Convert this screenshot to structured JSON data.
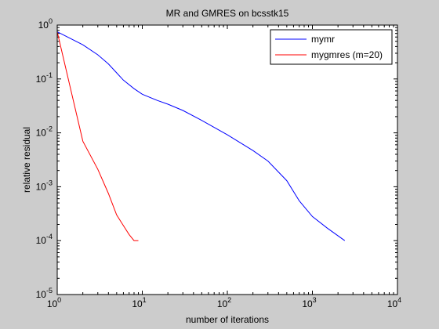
{
  "chart_data": {
    "type": "line",
    "title": "MR and GMRES on bcsstk15",
    "xlabel": "number of iterations",
    "ylabel": "relative residual",
    "xscale": "log",
    "yscale": "log",
    "xlim": [
      1,
      10000
    ],
    "ylim": [
      1e-05,
      1
    ],
    "grid": false,
    "legend_position": "top-right",
    "x_ticks": [
      {
        "value": 1,
        "base": "10",
        "exp": "0"
      },
      {
        "value": 10,
        "base": "10",
        "exp": "1"
      },
      {
        "value": 100,
        "base": "10",
        "exp": "2"
      },
      {
        "value": 1000,
        "base": "10",
        "exp": "3"
      },
      {
        "value": 10000,
        "base": "10",
        "exp": "4"
      }
    ],
    "y_ticks": [
      {
        "value": 1e-05,
        "base": "10",
        "exp": "-5"
      },
      {
        "value": 0.0001,
        "base": "10",
        "exp": "-4"
      },
      {
        "value": 0.001,
        "base": "10",
        "exp": "-3"
      },
      {
        "value": 0.01,
        "base": "10",
        "exp": "-2"
      },
      {
        "value": 0.1,
        "base": "10",
        "exp": "-1"
      },
      {
        "value": 1,
        "base": "10",
        "exp": "0"
      }
    ],
    "series": [
      {
        "name": "mymr",
        "color": "#0000ff",
        "x": [
          1,
          2,
          3,
          4,
          5,
          6,
          8,
          10,
          15,
          20,
          30,
          50,
          100,
          200,
          300,
          500,
          700,
          1000,
          1500,
          2400
        ],
        "y": [
          0.75,
          0.43,
          0.28,
          0.19,
          0.13,
          0.095,
          0.066,
          0.052,
          0.04,
          0.034,
          0.026,
          0.017,
          0.0092,
          0.0047,
          0.003,
          0.0013,
          0.00055,
          0.00028,
          0.00017,
          0.0001
        ]
      },
      {
        "name": "mygmres (m=20)",
        "color": "#ff0000",
        "x": [
          1,
          2,
          3,
          4,
          5,
          6,
          7,
          8,
          9
        ],
        "y": [
          0.75,
          0.007,
          0.0021,
          0.00075,
          0.0003,
          0.00019,
          0.00013,
          0.0001,
          0.0001
        ]
      }
    ]
  }
}
